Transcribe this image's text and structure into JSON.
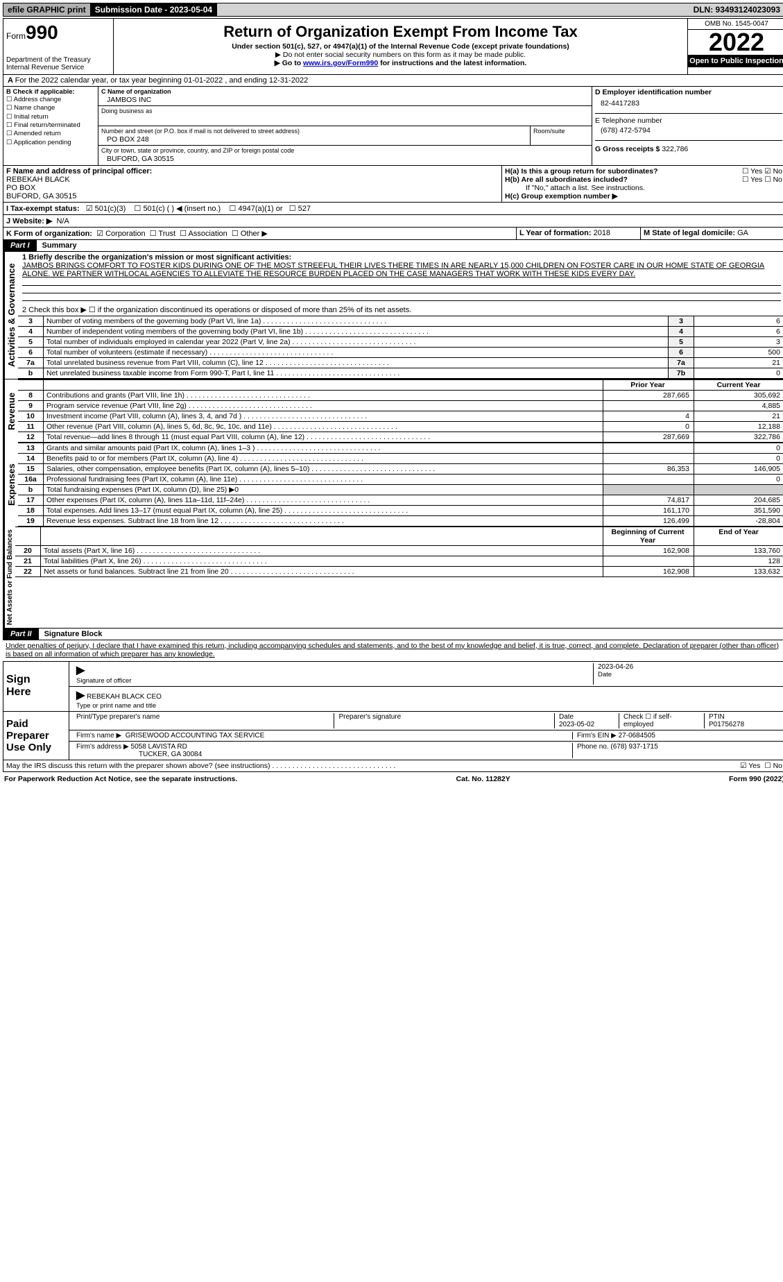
{
  "topbar": {
    "efile": "efile GRAPHIC print",
    "submission": "Submission Date - 2023-05-04",
    "dln": "DLN: 93493124023093"
  },
  "header": {
    "form_prefix": "Form",
    "form_num": "990",
    "dept": "Department of the Treasury Internal Revenue Service",
    "title": "Return of Organization Exempt From Income Tax",
    "sub1": "Under section 501(c), 527, or 4947(a)(1) of the Internal Revenue Code (except private foundations)",
    "sub2": "▶ Do not enter social security numbers on this form as it may be made public.",
    "sub3": "▶ Go to www.irs.gov/Form990 for instructions and the latest information.",
    "link": "www.irs.gov/Form990",
    "omb": "OMB No. 1545-0047",
    "year": "2022",
    "open": "Open to Public Inspection"
  },
  "yearline": {
    "prefix_a": "A",
    "text": "For the 2022 calendar year, or tax year beginning 01-01-2022    , and ending 12-31-2022"
  },
  "boxB": {
    "label": "B Check if applicable:",
    "items": [
      "Address change",
      "Name change",
      "Initial return",
      "Final return/terminated",
      "Amended return",
      "Application pending"
    ]
  },
  "boxC": {
    "name_label": "C Name of organization",
    "name": "JAMBOS INC",
    "dba_label": "Doing business as",
    "addr_label": "Number and street (or P.O. box if mail is not delivered to street address)",
    "room_label": "Room/suite",
    "addr": "PO BOX 248",
    "city_label": "City or town, state or province, country, and ZIP or foreign postal code",
    "city": "BUFORD, GA  30515"
  },
  "boxD": {
    "label": "D Employer identification number",
    "val": "82-4417283"
  },
  "boxE": {
    "label": "E Telephone number",
    "val": "(678) 472-5794"
  },
  "boxG": {
    "label": "G Gross receipts $",
    "val": "322,786"
  },
  "boxF": {
    "label": "F Name and address of principal officer:",
    "name": "REBEKAH BLACK",
    "addr1": "PO BOX",
    "addr2": "BUFORD, GA  30515"
  },
  "boxH": {
    "a": "H(a)  Is this a group return for subordinates?",
    "b": "H(b)  Are all subordinates included?",
    "b_note": "If \"No,\" attach a list. See instructions.",
    "c": "H(c)  Group exemption number ▶",
    "yes": "Yes",
    "no": "No"
  },
  "boxI": {
    "label": "I   Tax-exempt status:",
    "c3": "501(c)(3)",
    "c": "501(c) (   ) ◀ (insert no.)",
    "a1": "4947(a)(1) or",
    "s527": "527"
  },
  "boxJ": {
    "label": "J   Website: ▶",
    "val": "N/A"
  },
  "boxK": {
    "label": "K Form of organization:",
    "corp": "Corporation",
    "trust": "Trust",
    "assoc": "Association",
    "other": "Other ▶"
  },
  "boxL": {
    "label": "L Year of formation:",
    "val": "2018"
  },
  "boxM": {
    "label": "M State of legal domicile:",
    "val": "GA"
  },
  "partI": {
    "tab": "Part I",
    "title": "Summary",
    "q1_label": "1  Briefly describe the organization's mission or most significant activities:",
    "q1_text": "JAMBOS BRINGS COMFORT TO FOSTER KIDS DURING ONE OF THE MOST STREEFUL THEIR LIVES THERE TIMES IN ARE NEARLY 15,000 CHILDREN ON FOSTER CARE IN OUR HOME STATE OF GEORGIA ALONE. WE PARTNER WITHLOCAL AGENCIES TO ALLEVIATE THE RESOURCE BURDEN PLACED ON THE CASE MANAGERS THAT WORK WITH THESE KIDS EVERY DAY.",
    "q2": "2    Check this box ▶ ☐  if the organization discontinued its operations or disposed of more than 25% of its net assets."
  },
  "sections": {
    "gov": "Activities & Governance",
    "rev": "Revenue",
    "exp": "Expenses",
    "net": "Net Assets or Fund Balances"
  },
  "govRows": [
    {
      "n": "3",
      "d": "Number of voting members of the governing body (Part VI, line 1a)",
      "ln": "3",
      "v": "6"
    },
    {
      "n": "4",
      "d": "Number of independent voting members of the governing body (Part VI, line 1b)",
      "ln": "4",
      "v": "6"
    },
    {
      "n": "5",
      "d": "Total number of individuals employed in calendar year 2022 (Part V, line 2a)",
      "ln": "5",
      "v": "3"
    },
    {
      "n": "6",
      "d": "Total number of volunteers (estimate if necessary)",
      "ln": "6",
      "v": "500"
    },
    {
      "n": "7a",
      "d": "Total unrelated business revenue from Part VIII, column (C), line 12",
      "ln": "7a",
      "v": "21"
    },
    {
      "n": "b",
      "d": "Net unrelated business taxable income from Form 990-T, Part I, line 11",
      "ln": "7b",
      "v": "0"
    }
  ],
  "yearHeaders": {
    "prior": "Prior Year",
    "current": "Current Year",
    "beg": "Beginning of Current Year",
    "end": "End of Year"
  },
  "revRows": [
    {
      "n": "8",
      "d": "Contributions and grants (Part VIII, line 1h)",
      "p": "287,665",
      "c": "305,692"
    },
    {
      "n": "9",
      "d": "Program service revenue (Part VIII, line 2g)",
      "p": "",
      "c": "4,885"
    },
    {
      "n": "10",
      "d": "Investment income (Part VIII, column (A), lines 3, 4, and 7d )",
      "p": "4",
      "c": "21"
    },
    {
      "n": "11",
      "d": "Other revenue (Part VIII, column (A), lines 5, 6d, 8c, 9c, 10c, and 11e)",
      "p": "0",
      "c": "12,188"
    },
    {
      "n": "12",
      "d": "Total revenue—add lines 8 through 11 (must equal Part VIII, column (A), line 12)",
      "p": "287,669",
      "c": "322,786"
    }
  ],
  "expRows": [
    {
      "n": "13",
      "d": "Grants and similar amounts paid (Part IX, column (A), lines 1–3 )",
      "p": "",
      "c": "0"
    },
    {
      "n": "14",
      "d": "Benefits paid to or for members (Part IX, column (A), line 4)",
      "p": "",
      "c": "0"
    },
    {
      "n": "15",
      "d": "Salaries, other compensation, employee benefits (Part IX, column (A), lines 5–10)",
      "p": "86,353",
      "c": "146,905"
    },
    {
      "n": "16a",
      "d": "Professional fundraising fees (Part IX, column (A), line 11e)",
      "p": "",
      "c": "0"
    },
    {
      "n": "b",
      "d": "Total fundraising expenses (Part IX, column (D), line 25) ▶0",
      "p": null,
      "c": null
    },
    {
      "n": "17",
      "d": "Other expenses (Part IX, column (A), lines 11a–11d, 11f–24e)",
      "p": "74,817",
      "c": "204,685"
    },
    {
      "n": "18",
      "d": "Total expenses. Add lines 13–17 (must equal Part IX, column (A), line 25)",
      "p": "161,170",
      "c": "351,590"
    },
    {
      "n": "19",
      "d": "Revenue less expenses. Subtract line 18 from line 12",
      "p": "126,499",
      "c": "-28,804"
    }
  ],
  "netRows": [
    {
      "n": "20",
      "d": "Total assets (Part X, line 16)",
      "p": "162,908",
      "c": "133,760"
    },
    {
      "n": "21",
      "d": "Total liabilities (Part X, line 26)",
      "p": "",
      "c": "128"
    },
    {
      "n": "22",
      "d": "Net assets or fund balances. Subtract line 21 from line 20",
      "p": "162,908",
      "c": "133,632"
    }
  ],
  "partII": {
    "tab": "Part II",
    "title": "Signature Block"
  },
  "penalties": "Under penalties of perjury, I declare that I have examined this return, including accompanying schedules and statements, and to the best of my knowledge and belief, it is true, correct, and complete. Declaration of preparer (other than officer) is based on all information of which preparer has any knowledge.",
  "sign": {
    "here1": "Sign",
    "here2": "Here",
    "sig_officer": "Signature of officer",
    "date": "Date",
    "date_val": "2023-04-26",
    "name_title": "REBEKAH BLACK CEO",
    "type_label": "Type or print name and title"
  },
  "paid": {
    "h1": "Paid",
    "h2": "Preparer",
    "h3": "Use Only",
    "col1": "Print/Type preparer's name",
    "col2": "Preparer's signature",
    "col3": "Date",
    "date": "2023-05-02",
    "check": "Check ☐ if self-employed",
    "ptin_l": "PTIN",
    "ptin": "P01756278",
    "firm_l": "Firm's name   ▶",
    "firm": "GRISEWOOD ACCOUNTING TAX SERVICE",
    "ein_l": "Firm's EIN ▶",
    "ein": "27-0684505",
    "addr_l": "Firm's address ▶",
    "addr1": "5058 LAVISTA RD",
    "addr2": "TUCKER, GA  30084",
    "phone_l": "Phone no.",
    "phone": "(678) 937-1715"
  },
  "discuss": {
    "text": "May the IRS discuss this return with the preparer shown above? (see instructions)",
    "yes": "Yes",
    "no": "No"
  },
  "footer": {
    "left": "For Paperwork Reduction Act Notice, see the separate instructions.",
    "mid": "Cat. No. 11282Y",
    "right": "Form 990 (2022)"
  }
}
